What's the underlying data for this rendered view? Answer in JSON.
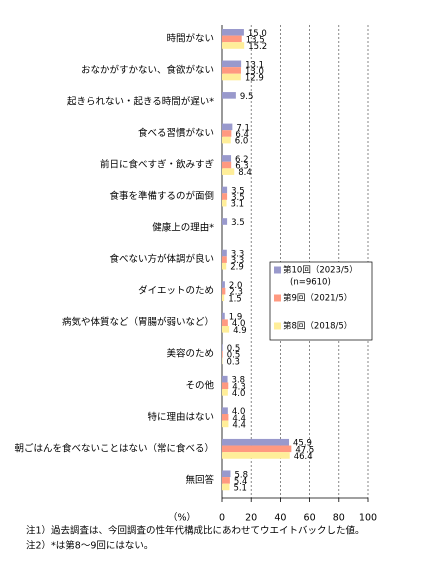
{
  "chart_data": {
    "type": "hbar",
    "categories": [
      "時間がない",
      "おなかがすかない、食欲がない",
      "起きられない・起きる時間が遅い*",
      "食べる習慣がない",
      "前日に食べすぎ・飲みすぎ",
      "食事を準備するのが面倒",
      "健康上の理由*",
      "食べない方が体調が良い",
      "ダイエットのため",
      "病気や体質など（胃腸が弱いなど）",
      "美容のため",
      "その他",
      "特に理由はない",
      "朝ごはんを食べないことはない（常に食べる）",
      "無回答"
    ],
    "series": [
      {
        "name": "第10回（2023/5）",
        "color": "#9999cc",
        "values": [
          15.0,
          13.1,
          9.5,
          7.1,
          6.2,
          3.5,
          3.5,
          3.3,
          2.0,
          1.9,
          0.5,
          3.8,
          4.0,
          45.9,
          5.8
        ],
        "value_labels": [
          "15.0",
          "13.1",
          "9.5",
          "7.1",
          "6.2",
          "3.5",
          "3.5",
          "3.3",
          "2.0",
          "1.9",
          "0.5",
          "3.8",
          "4.0",
          "45.9",
          "5.8"
        ]
      },
      {
        "name": "第9回（2021/5）",
        "color": "#ff9980",
        "values": [
          13.5,
          13.0,
          null,
          6.4,
          6.3,
          3.5,
          null,
          3.3,
          2.3,
          4.0,
          0.5,
          4.3,
          4.4,
          47.5,
          5.4
        ],
        "value_labels": [
          "13.5",
          "13.0",
          null,
          "6.4",
          "6.3",
          "3.5",
          null,
          "3.3",
          "2.3",
          "4.0",
          "0.5",
          "4.3",
          "4.4",
          "47.5",
          "5.4"
        ]
      },
      {
        "name": "第8回（2018/5）",
        "color": "#ffee99",
        "values": [
          15.2,
          12.9,
          null,
          6.0,
          8.4,
          3.1,
          null,
          2.9,
          1.5,
          4.9,
          0.3,
          4.0,
          4.4,
          46.4,
          5.1
        ],
        "value_labels": [
          "15.2",
          "12.9",
          null,
          "6.0",
          "8.4",
          "3.1",
          null,
          "2.9",
          "1.5",
          "4.9",
          "0.3",
          "4.0",
          "4.4",
          "46.4",
          "5.1"
        ]
      }
    ],
    "legend_note": "(n=9610)",
    "x_label": "（%）",
    "xlim": [
      0,
      100
    ],
    "xticks": [
      0,
      20,
      40,
      60,
      80,
      100
    ],
    "grid": true,
    "notes": [
      "注1）過去調査は、今回調査の性年代構成比にあわせてウエイトバックした値。",
      "注2）*は第8～9回にはない。"
    ]
  }
}
